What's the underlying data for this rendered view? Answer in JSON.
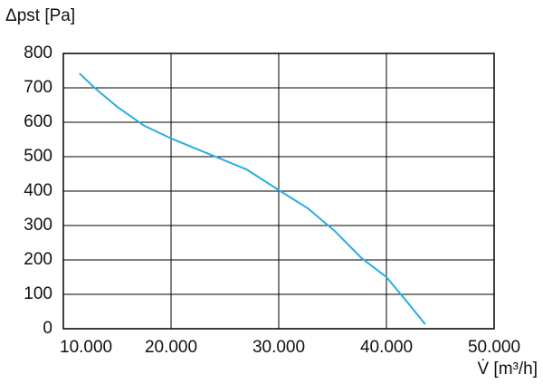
{
  "chart_data": {
    "type": "line",
    "y_label": "Δpst [Pa]",
    "x_label": "V̇ [m³/h]",
    "x": [
      11500,
      12900,
      15000,
      17500,
      20000,
      23500,
      27000,
      30000,
      32700,
      35200,
      37700,
      40000,
      42000,
      43600
    ],
    "series": [
      {
        "color": "#29aee0",
        "values": [
          742,
          700,
          645,
          590,
          553,
          508,
          463,
          403,
          350,
          284,
          205,
          150,
          75,
          13
        ]
      }
    ],
    "xlim": [
      10000,
      50000
    ],
    "xticks": [
      {
        "value": 10000,
        "label": "10.000"
      },
      {
        "value": 20000,
        "label": "20.000"
      },
      {
        "value": 30000,
        "label": "30.000"
      },
      {
        "value": 40000,
        "label": "40.000"
      },
      {
        "value": 50000,
        "label": "50.000"
      }
    ],
    "ylim": [
      0,
      800
    ],
    "yticks": [
      0,
      100,
      200,
      300,
      400,
      500,
      600,
      700,
      800
    ],
    "grid": true
  }
}
